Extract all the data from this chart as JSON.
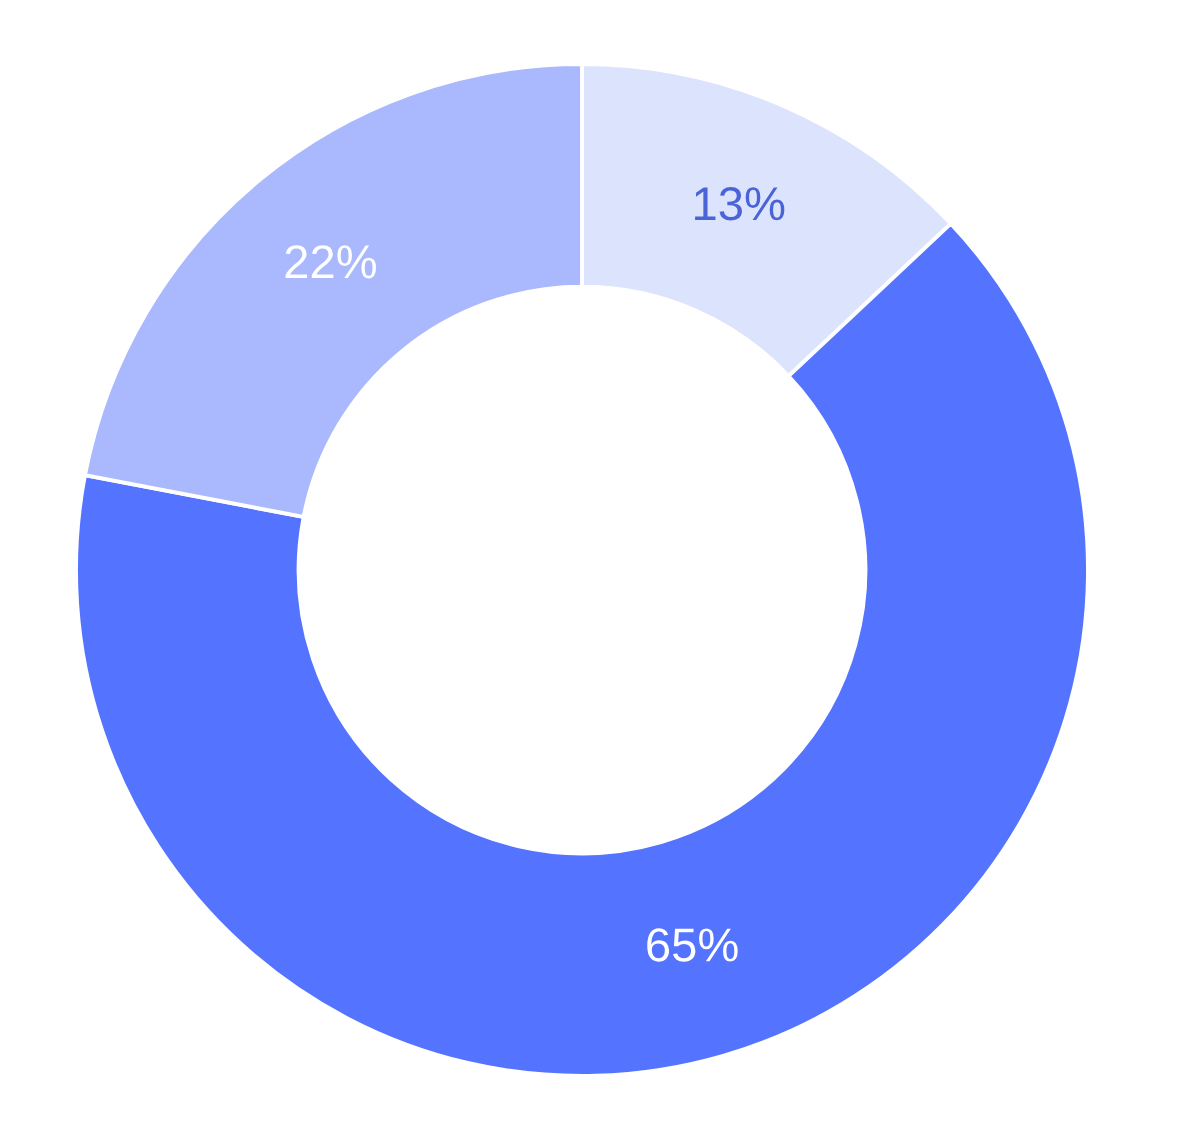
{
  "chart_data": {
    "type": "donut",
    "categories": [
      null,
      null,
      null
    ],
    "values": [
      13,
      65,
      22
    ],
    "colors": [
      "#dce3fd",
      "#5474ff",
      "#aab9fd"
    ],
    "value_labels": [
      "13%",
      "65%",
      "22%"
    ]
  }
}
